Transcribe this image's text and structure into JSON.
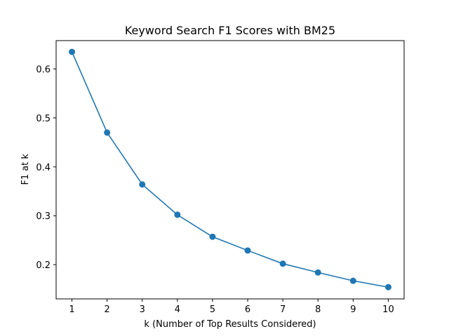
{
  "chart_data": {
    "type": "line",
    "title": "Keyword Search F1 Scores with BM25",
    "xlabel": "k (Number of Top Results Considered)",
    "ylabel": "F1 at k",
    "x": [
      1,
      2,
      3,
      4,
      5,
      6,
      7,
      8,
      9,
      10
    ],
    "series": [
      {
        "values": [
          0.635,
          0.47,
          0.364,
          0.302,
          0.257,
          0.229,
          0.202,
          0.184,
          0.167,
          0.154
        ],
        "color": "#1f77b4",
        "marker": "circle"
      }
    ],
    "xlim": [
      0.55,
      10.45
    ],
    "ylim": [
      0.13,
      0.658
    ],
    "xticks": [
      1,
      2,
      3,
      4,
      5,
      6,
      7,
      8,
      9,
      10
    ],
    "yticks": [
      0.2,
      0.3,
      0.4,
      0.5,
      0.6
    ],
    "grid": false,
    "legend": "none"
  }
}
